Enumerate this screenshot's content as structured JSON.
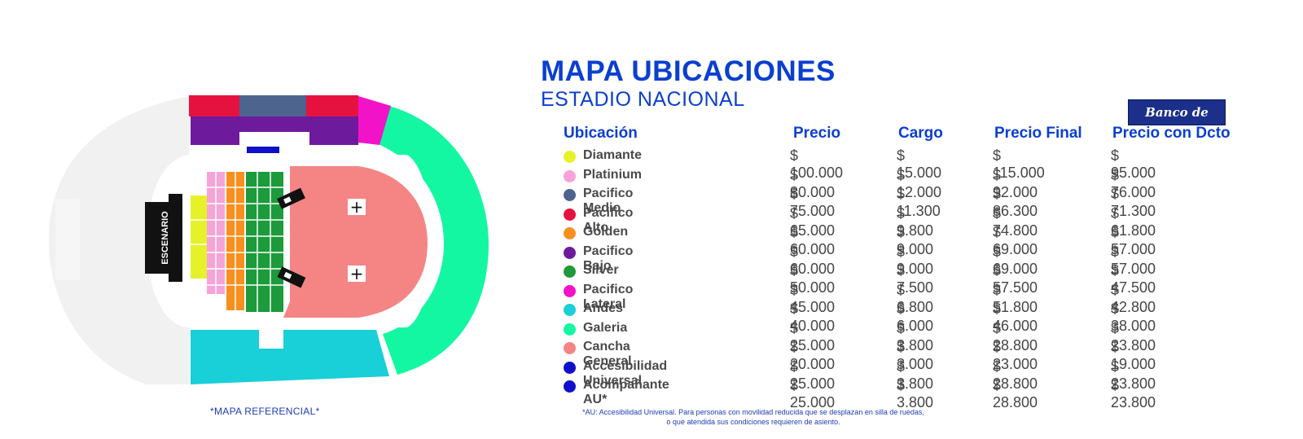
{
  "map": {
    "stage_label": "ESCENARIO",
    "note": "*MAPA REFERENCIAL*",
    "plus_symbol": "+"
  },
  "title": "MAPA UBICACIONES",
  "subtitle": "ESTADIO NACIONAL",
  "bank_logo": "Banco de Chile",
  "headers": {
    "location": "Ubicación",
    "price": "Precio",
    "fee": "Cargo",
    "final_price": "Precio Final",
    "discount_price": "Precio con Dcto"
  },
  "rows": [
    {
      "name": "Diamante",
      "color": "#e5f22a",
      "price": "$ 100.000",
      "fee": "$ 15.000",
      "final": "$ 115.000",
      "discount": "$ 95.000"
    },
    {
      "name": "Platinium",
      "color": "#f6a3d8",
      "price": "$ 80.000",
      "fee": "$ 12.000",
      "final": "$ 92.000",
      "discount": "$ 76.000"
    },
    {
      "name": "Pacifico Medio",
      "color": "#4d648f",
      "price": "$ 75.000",
      "fee": "$ 11.300",
      "final": "$ 86.300",
      "discount": "$ 71.300"
    },
    {
      "name": "Pacifico Alto",
      "color": "#e5123f",
      "price": "$ 65.000",
      "fee": "$ 9.800",
      "final": "$ 74.800",
      "discount": "$ 61.800"
    },
    {
      "name": "Golden",
      "color": "#f7901e",
      "price": "$ 60.000",
      "fee": "$ 9.000",
      "final": "$ 69.000",
      "discount": "$ 57.000"
    },
    {
      "name": "Pacifico Bajo",
      "color": "#6e1a9c",
      "price": "$ 60.000",
      "fee": "$ 9.000",
      "final": "$ 69.000",
      "discount": "$ 57.000"
    },
    {
      "name": "Silver",
      "color": "#1c9a3c",
      "price": "$ 50.000",
      "fee": "$ 7.500",
      "final": "$ 57.500",
      "discount": "$ 47.500"
    },
    {
      "name": "Pacifico Lateral",
      "color": "#f212c8",
      "price": "$ 45.000",
      "fee": "$ 6.800",
      "final": "$ 51.800",
      "discount": "$ 42.800"
    },
    {
      "name": "Andes",
      "color": "#19cfd8",
      "price": "$ 40.000",
      "fee": "$ 6.000",
      "final": "$ 46.000",
      "discount": "$ 38.000"
    },
    {
      "name": "Galeria",
      "color": "#14f7a2",
      "price": "$ 25.000",
      "fee": "$ 3.800",
      "final": "$ 28.800",
      "discount": "$ 23.800"
    },
    {
      "name": "Cancha General",
      "color": "#f58585",
      "price": "$ 20.000",
      "fee": "$ 3.000",
      "final": "$ 23.000",
      "discount": "$ 19.000"
    },
    {
      "name": "Accesibilidad Universal",
      "color": "#1010c8",
      "price": "$ 25.000",
      "fee": "$ 3.800",
      "final": "$ 28.800",
      "discount": "$ 23.800"
    },
    {
      "name": "Acompañante AU*",
      "color": "#1010c8",
      "price": "$ 25.000",
      "fee": "$ 3.800",
      "final": "$ 28.800",
      "discount": "$ 23.800"
    }
  ],
  "footnote_line1": "*AU: Accesibilidad Universal. Para personas con movilidad reducida que se desplazan en silla de ruedas,",
  "footnote_line2": "o que atendida sus condiciones requieren de asiento."
}
